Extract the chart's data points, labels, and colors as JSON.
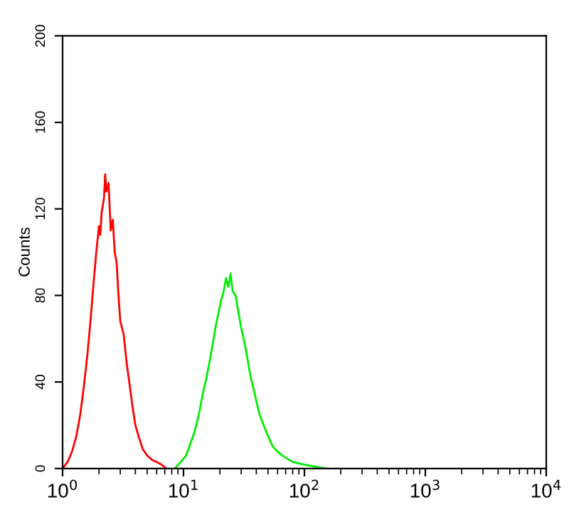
{
  "chart_data": {
    "type": "line",
    "ylabel": "Counts",
    "log": "x",
    "grid": false,
    "legend": false,
    "xlim": [
      1,
      10000
    ],
    "xticks": [
      {
        "value": 1,
        "label": "10$^{0}$"
      },
      {
        "value": 10,
        "label": "10$^{1}$"
      },
      {
        "value": 100,
        "label": "10$^{2}$"
      },
      {
        "value": 1000,
        "label": "10$^{3}$"
      },
      {
        "value": 10000,
        "label": "10$^{4}$"
      }
    ],
    "ylim": [
      0,
      200
    ],
    "yticks": [
      0,
      40,
      80,
      120,
      160,
      200
    ],
    "series": [
      {
        "color": "#ff0000",
        "x": [
          1.0,
          1.1,
          1.2,
          1.3,
          1.4,
          1.5,
          1.6,
          1.7,
          1.8,
          1.9,
          2.0,
          2.05,
          2.1,
          2.2,
          2.25,
          2.3,
          2.4,
          2.5,
          2.6,
          2.7,
          2.8,
          2.9,
          3.0,
          3.2,
          3.4,
          3.6,
          3.8,
          4.0,
          4.3,
          4.6,
          5.0,
          5.5,
          6.0,
          6.5,
          7.2
        ],
        "values": [
          0,
          3,
          8,
          15,
          25,
          38,
          52,
          68,
          85,
          100,
          112,
          108,
          118,
          125,
          136,
          128,
          132,
          110,
          115,
          100,
          95,
          80,
          68,
          62,
          48,
          38,
          28,
          20,
          14,
          9,
          6,
          4,
          3,
          2,
          0
        ]
      },
      {
        "color": "#00ee00",
        "x": [
          8.5,
          9.5,
          10.5,
          11.5,
          12.5,
          13.5,
          14.5,
          15.5,
          16.5,
          17.5,
          18.5,
          19.5,
          20.5,
          21.5,
          22.5,
          23.5,
          24.5,
          25.5,
          27,
          28.5,
          30,
          32,
          34,
          36,
          39,
          42,
          46,
          50,
          55,
          62,
          70,
          80,
          95,
          120,
          150
        ],
        "values": [
          0,
          3,
          6,
          12,
          18,
          26,
          35,
          42,
          50,
          58,
          66,
          72,
          78,
          82,
          88,
          84,
          90,
          82,
          80,
          72,
          65,
          58,
          50,
          42,
          34,
          26,
          20,
          15,
          10,
          7,
          5,
          3,
          2,
          1,
          0
        ]
      }
    ]
  }
}
